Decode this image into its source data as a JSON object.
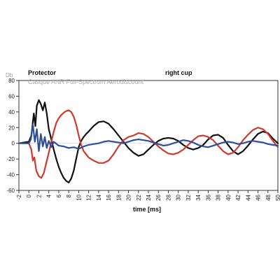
{
  "chart_data": {
    "type": "line",
    "xlabel": "time [ms]",
    "ylabel": "Db",
    "xlim": [
      -2,
      50
    ],
    "ylim": [
      -60,
      80
    ],
    "grid": false,
    "xticks": [
      -2,
      0,
      2,
      4,
      6,
      8,
      10,
      12,
      14,
      16,
      18,
      20,
      22,
      24,
      26,
      28,
      30,
      32,
      34,
      36,
      38,
      40,
      42,
      44,
      46,
      48,
      50
    ],
    "yticks": [
      80,
      60,
      40,
      20,
      0,
      -20,
      -40,
      -60
    ],
    "annotations": [
      {
        "text": "Protector",
        "style": "bold"
      },
      {
        "text": "right cup",
        "style": "bold"
      },
      {
        "text": "Casque ANR Full-Spectrum Aerodiscount",
        "style": "grey"
      }
    ],
    "series": [
      {
        "color": "#111111",
        "x": [
          -2,
          0,
          0.5,
          1,
          1.3,
          1.6,
          2,
          2.4,
          2.8,
          3.2,
          3.6,
          4,
          4.5,
          5,
          5.5,
          6,
          6.5,
          7,
          7.5,
          8,
          8.5,
          9,
          9.5,
          10,
          10.5,
          11,
          11.5,
          12,
          13,
          14,
          15,
          16,
          17,
          18,
          19,
          20,
          21,
          22,
          23,
          24,
          25,
          26,
          27,
          28,
          29,
          30,
          31,
          32,
          33,
          34,
          35,
          36,
          37,
          38,
          39,
          40,
          41,
          42,
          43,
          44,
          45,
          46,
          47,
          48,
          49,
          50
        ],
        "y": [
          0,
          2,
          10,
          38,
          22,
          48,
          55,
          50,
          42,
          52,
          38,
          18,
          5,
          -8,
          -20,
          -30,
          -38,
          -44,
          -48,
          -50,
          -45,
          -35,
          -20,
          -5,
          3,
          8,
          12,
          15,
          22,
          27,
          28,
          25,
          18,
          10,
          2,
          -6,
          -12,
          -16,
          -14,
          -8,
          -2,
          3,
          6,
          7,
          6,
          3,
          -2,
          -6,
          -8,
          -6,
          -2,
          5,
          10,
          11,
          7,
          -2,
          -10,
          -14,
          -10,
          -3,
          5,
          12,
          15,
          13,
          6,
          0
        ]
      },
      {
        "color": "#d03a2e",
        "x": [
          -2,
          0,
          0.5,
          0.8,
          1.1,
          1.5,
          2,
          2.5,
          3,
          3.5,
          4,
          4.5,
          5,
          5.5,
          6,
          6.5,
          7,
          7.5,
          8,
          8.5,
          9,
          9.5,
          10,
          10.5,
          11,
          12,
          13,
          14,
          15,
          16,
          17,
          18,
          19,
          20,
          21,
          22,
          23,
          24,
          25,
          26,
          27,
          28,
          29,
          30,
          31,
          32,
          33,
          34,
          35,
          36,
          37,
          38,
          39,
          40,
          41,
          42,
          43,
          44,
          45,
          46,
          47,
          48,
          49,
          50
        ],
        "y": [
          0,
          0,
          -8,
          -22,
          -18,
          -35,
          -42,
          -44,
          -38,
          -25,
          -12,
          2,
          15,
          26,
          32,
          36,
          39,
          41,
          42,
          40,
          34,
          24,
          10,
          -2,
          -10,
          -18,
          -22,
          -25,
          -25,
          -22,
          -14,
          -4,
          4,
          8,
          10,
          13,
          12,
          8,
          2,
          -4,
          -9,
          -13,
          -14,
          -12,
          -8,
          -2,
          4,
          9,
          10,
          8,
          4,
          -3,
          -10,
          -14,
          -12,
          -5,
          4,
          11,
          17,
          20,
          18,
          12,
          3,
          -5
        ],
        "label_series": "red"
      },
      {
        "color": "#2d4f9a",
        "x": [
          -2,
          0,
          0.4,
          0.8,
          1.2,
          1.6,
          2,
          2.4,
          2.8,
          3.2,
          3.6,
          4,
          4.5,
          5,
          6,
          7,
          8,
          9,
          10,
          11,
          12,
          13,
          14,
          15,
          16,
          17,
          18,
          19,
          20,
          21,
          22,
          23,
          24,
          25,
          26,
          27,
          28,
          29,
          30,
          31,
          32,
          33,
          34,
          35,
          36,
          37,
          38,
          39,
          40,
          41,
          42,
          43,
          44,
          45,
          46,
          47,
          48,
          49,
          50
        ],
        "y": [
          0,
          0,
          5,
          24,
          2,
          18,
          -10,
          12,
          -4,
          8,
          -6,
          3,
          -5,
          2,
          -3,
          -4,
          -6,
          -5,
          -7,
          -4,
          -2,
          -1,
          0,
          2,
          3,
          2,
          1,
          0,
          2,
          4,
          5,
          4,
          3,
          1,
          -1,
          -3,
          -2,
          0,
          2,
          4,
          3,
          1,
          -2,
          -4,
          -5,
          -3,
          -1,
          1,
          2,
          1,
          -1,
          0,
          2,
          3,
          2,
          1,
          -1,
          -2,
          -3
        ]
      }
    ]
  }
}
